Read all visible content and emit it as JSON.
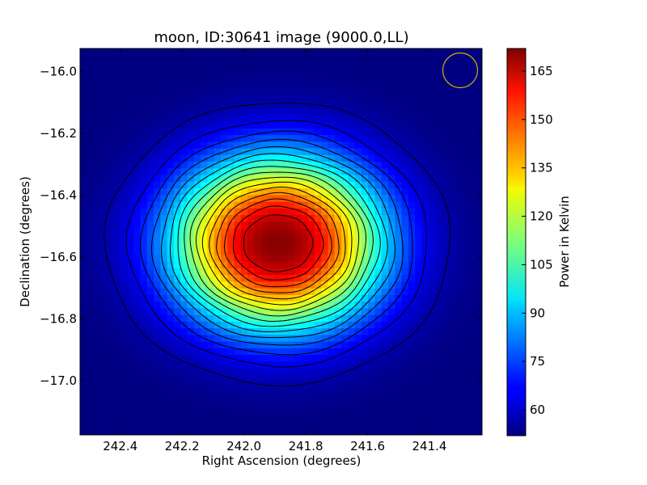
{
  "chart_data": {
    "type": "heatmap",
    "title": "moon, ID:30641 image (9000.0,LL)",
    "xlabel": "Right Ascension (degrees)",
    "ylabel": "Declination (degrees)",
    "xlim": [
      242.53,
      241.23
    ],
    "ylim": [
      -17.175,
      -15.925
    ],
    "x_ticks": [
      {
        "value": 242.4,
        "label": "242.4"
      },
      {
        "value": 242.2,
        "label": "242.2"
      },
      {
        "value": 242.0,
        "label": "242.0"
      },
      {
        "value": 241.8,
        "label": "241.8"
      },
      {
        "value": 241.6,
        "label": "241.6"
      },
      {
        "value": 241.4,
        "label": "241.4"
      }
    ],
    "y_ticks": [
      {
        "value": -16.0,
        "label": "−16.0"
      },
      {
        "value": -16.2,
        "label": "−16.2"
      },
      {
        "value": -16.4,
        "label": "−16.4"
      },
      {
        "value": -16.6,
        "label": "−16.6"
      },
      {
        "value": -16.8,
        "label": "−16.8"
      },
      {
        "value": -17.0,
        "label": "−17.0"
      }
    ],
    "peak": {
      "ra": 241.89,
      "dec": -16.555,
      "value": 171
    },
    "background_value": 52,
    "contour_levels": [
      57,
      64,
      71,
      78,
      85,
      92,
      99,
      106,
      113,
      120,
      127,
      134,
      141,
      148,
      155,
      162
    ],
    "colorbar": {
      "label": "Power in Kelvin",
      "min": 52,
      "max": 172,
      "colormap": "jet",
      "ticks": [
        60,
        75,
        90,
        105,
        120,
        135,
        150,
        165
      ]
    },
    "beam_circle_color": "#c8b400",
    "contour_color": "#000000"
  }
}
